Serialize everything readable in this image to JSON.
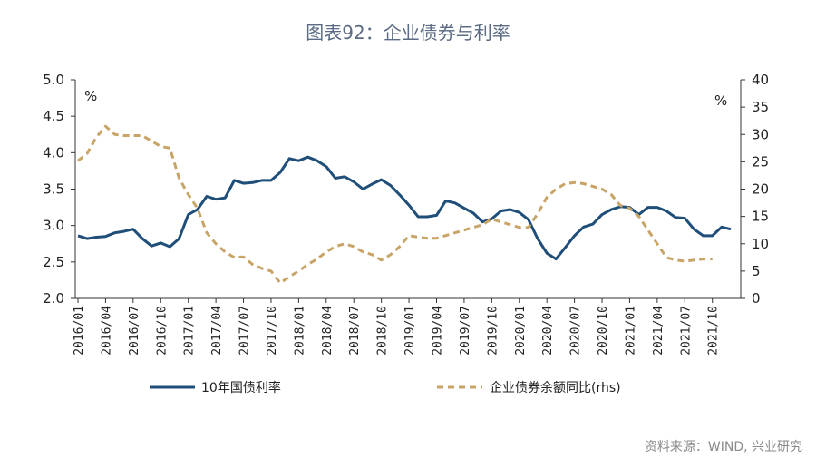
{
  "chart_data": {
    "type": "line",
    "title": "图表92：企业债券与利率",
    "left_unit": "%",
    "right_unit": "%",
    "source": "资料来源：WIND, 兴业研究",
    "ylim_left": [
      2.0,
      5.0
    ],
    "ylim_right": [
      0,
      40
    ],
    "yticks_left": [
      "5.0",
      "4.5",
      "4.0",
      "3.5",
      "3.0",
      "2.5",
      "2.0"
    ],
    "yticks_right": [
      "40",
      "35",
      "30",
      "25",
      "20",
      "15",
      "10",
      "5",
      "0"
    ],
    "x_tick_labels": [
      "2016/01",
      "2016/04",
      "2016/07",
      "2016/10",
      "2017/01",
      "2017/04",
      "2017/07",
      "2017/10",
      "2018/01",
      "2018/04",
      "2018/07",
      "2018/10",
      "2019/01",
      "2019/04",
      "2019/07",
      "2019/10",
      "2020/01",
      "2020/04",
      "2020/07",
      "2020/10",
      "2021/01",
      "2021/04",
      "2021/07",
      "2021/10"
    ],
    "series": [
      {
        "name": "10年国债利率",
        "axis": "left",
        "color": "#1f4e79",
        "style": "solid",
        "values": [
          2.86,
          2.82,
          2.84,
          2.85,
          2.9,
          2.92,
          2.95,
          2.82,
          2.72,
          2.76,
          2.71,
          2.82,
          3.15,
          3.22,
          3.4,
          3.36,
          3.38,
          3.62,
          3.58,
          3.59,
          3.62,
          3.62,
          3.73,
          3.92,
          3.89,
          3.94,
          3.89,
          3.81,
          3.65,
          3.67,
          3.6,
          3.5,
          3.57,
          3.63,
          3.55,
          3.42,
          3.28,
          3.12,
          3.12,
          3.14,
          3.34,
          3.31,
          3.24,
          3.17,
          3.05,
          3.09,
          3.2,
          3.22,
          3.18,
          3.08,
          2.82,
          2.62,
          2.54,
          2.7,
          2.86,
          2.98,
          3.02,
          3.15,
          3.22,
          3.26,
          3.25,
          3.15,
          3.25,
          3.25,
          3.2,
          3.11,
          3.1,
          2.95,
          2.86,
          2.86,
          2.98,
          2.95
        ]
      },
      {
        "name": "企业债券余额同比(rhs)",
        "axis": "right",
        "color": "#c8a467",
        "style": "dashed",
        "values": [
          25.2,
          26.5,
          29.5,
          31.5,
          30.0,
          29.8,
          29.8,
          29.8,
          28.8,
          27.8,
          27.5,
          22.0,
          19.0,
          16.5,
          12.0,
          10.0,
          8.5,
          7.5,
          7.6,
          6.2,
          5.5,
          5.0,
          2.8,
          4.0,
          5.0,
          6.2,
          7.2,
          8.5,
          9.5,
          10.0,
          9.5,
          8.5,
          8.0,
          7.0,
          8.0,
          9.5,
          11.5,
          11.2,
          11.0,
          11.0,
          11.5,
          12.0,
          12.5,
          13.0,
          13.5,
          14.5,
          14.0,
          13.5,
          13.0,
          13.0,
          15.5,
          18.5,
          20.0,
          21.0,
          21.2,
          21.0,
          20.5,
          20.0,
          19.0,
          17.0,
          16.5,
          15.0,
          12.5,
          10.0,
          7.5,
          7.0,
          6.8,
          7.0,
          7.2,
          7.2
        ]
      }
    ]
  }
}
